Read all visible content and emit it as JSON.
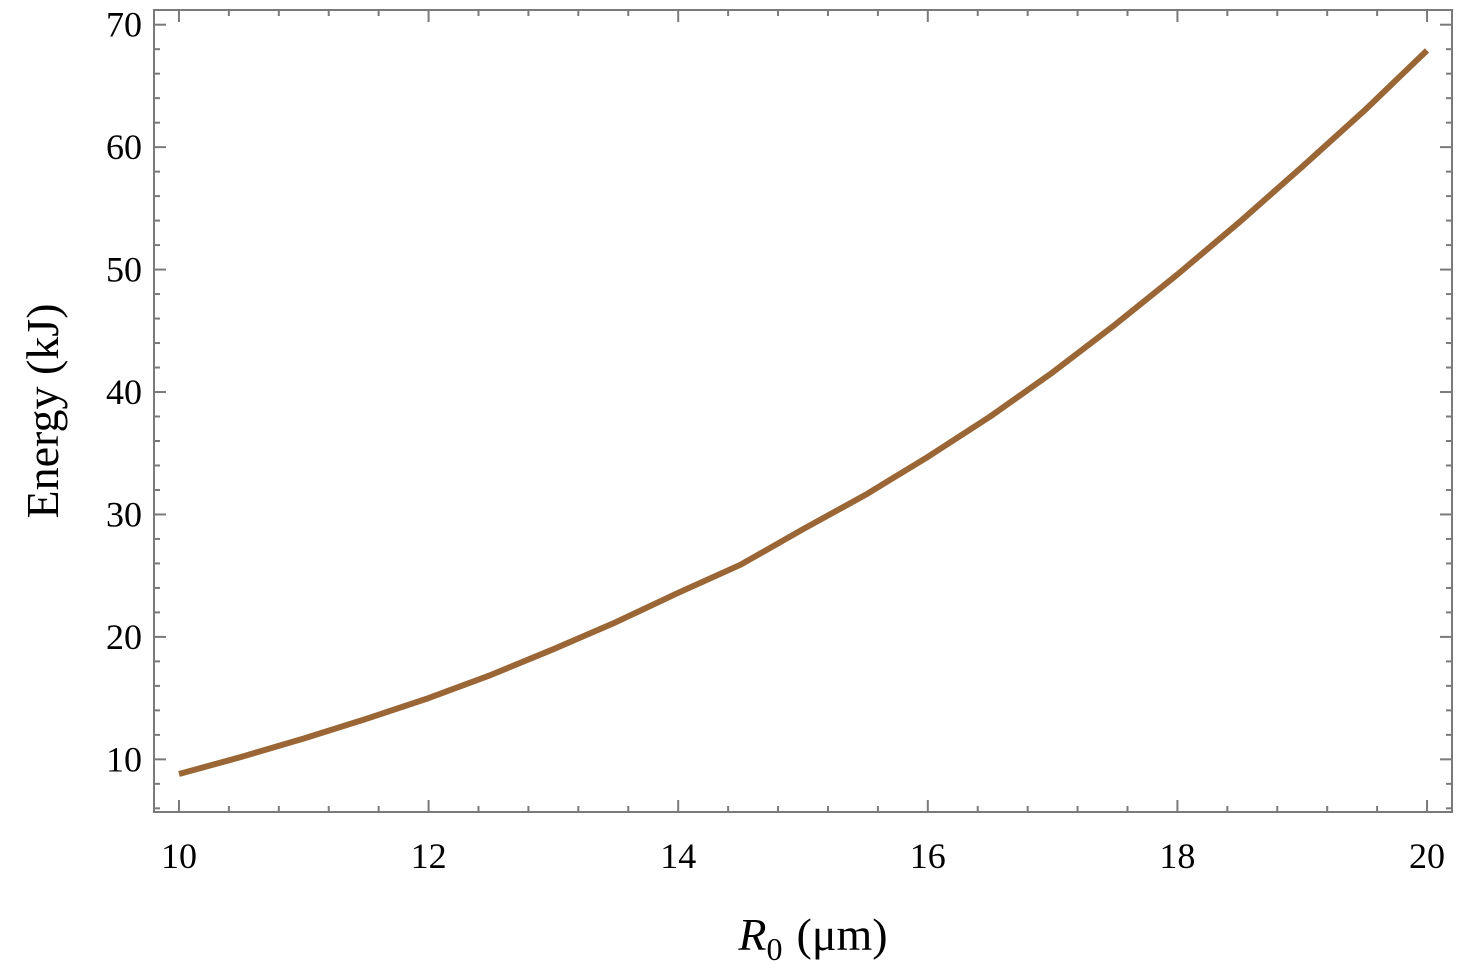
{
  "chart_data": {
    "type": "line",
    "xlabel": "R0 (μm)",
    "xlabel_parts": {
      "symbol": "R",
      "subscript": "0",
      "unit": "(μm)"
    },
    "ylabel": "Energy (kJ)",
    "xlim": [
      9.8,
      20.2
    ],
    "ylim": [
      5.7,
      71.2
    ],
    "x_ticks": [
      10,
      12,
      14,
      16,
      18,
      20
    ],
    "y_ticks": [
      10,
      20,
      30,
      40,
      50,
      60,
      70
    ],
    "grid": false,
    "line_color": "#9b6635",
    "series": [
      {
        "x": [
          10,
          10.5,
          11,
          11.5,
          12,
          12.5,
          13,
          13.5,
          14,
          14.5,
          15,
          15.5,
          16,
          16.5,
          17,
          17.5,
          18,
          18.5,
          19,
          19.5,
          20
        ],
        "y": [
          8.8,
          10.2,
          11.7,
          13.3,
          15.0,
          16.9,
          19.0,
          21.2,
          23.6,
          25.9,
          28.8,
          31.6,
          34.7,
          38.0,
          41.6,
          45.5,
          49.6,
          53.9,
          58.4,
          63.0,
          67.9
        ]
      }
    ]
  }
}
